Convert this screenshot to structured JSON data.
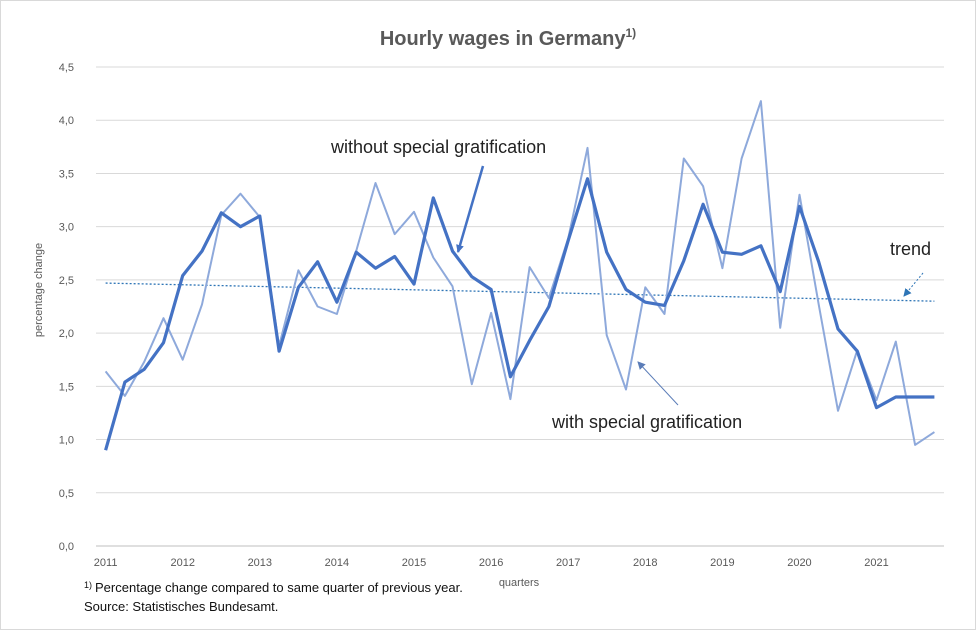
{
  "chart_data": {
    "type": "line",
    "title": "Hourly wages in Germany",
    "title_superscript": "1)",
    "xlabel": "quarters",
    "ylabel": "percentage change",
    "ylim": [
      0,
      4.5
    ],
    "yticks": [
      "0,0",
      "0,5",
      "1,0",
      "1,5",
      "2,0",
      "2,5",
      "3,0",
      "3,5",
      "4,0",
      "4,5"
    ],
    "year_labels": [
      "2011",
      "2012",
      "2013",
      "2014",
      "2015",
      "2016",
      "2017",
      "2018",
      "2019",
      "2020",
      "2021"
    ],
    "quarters_per_year": 4,
    "grid": true,
    "series": [
      {
        "name": "without special gratification",
        "color": "#4472C4",
        "values": [
          0.9,
          1.54,
          1.66,
          1.91,
          2.54,
          2.77,
          3.13,
          3.0,
          3.1,
          1.83,
          2.43,
          2.67,
          2.29,
          2.76,
          2.61,
          2.72,
          2.46,
          3.27,
          2.77,
          2.53,
          2.41,
          1.59,
          1.93,
          2.25,
          2.87,
          3.45,
          2.76,
          2.41,
          2.29,
          2.26,
          2.68,
          3.21,
          2.76,
          2.74,
          2.82,
          2.39,
          3.19,
          2.67,
          2.04,
          1.83,
          1.3,
          1.4,
          1.4,
          1.4
        ]
      },
      {
        "name": "with special gratification",
        "color": "#8EA9DB",
        "values": [
          1.64,
          1.41,
          1.73,
          2.14,
          1.75,
          2.27,
          3.11,
          3.31,
          3.09,
          1.88,
          2.59,
          2.25,
          2.18,
          2.77,
          3.41,
          2.93,
          3.14,
          2.71,
          2.44,
          1.52,
          2.19,
          1.38,
          2.62,
          2.33,
          2.89,
          3.74,
          1.98,
          1.47,
          2.43,
          2.18,
          3.64,
          3.38,
          2.61,
          3.64,
          4.18,
          2.05,
          3.3,
          2.27,
          1.27,
          1.84,
          1.37,
          1.92,
          0.95,
          1.07
        ]
      }
    ],
    "trend": {
      "label": "trend",
      "start": 2.47,
      "end": 2.3,
      "color": "#2E75B6"
    },
    "annotations": {
      "without": "without special gratification",
      "with": "with special gratification"
    },
    "footnote": {
      "marker": "1)",
      "line1": "Percentage change compared to same quarter of previous year.",
      "line2": "Source: Statistisches Bundesamt."
    }
  }
}
